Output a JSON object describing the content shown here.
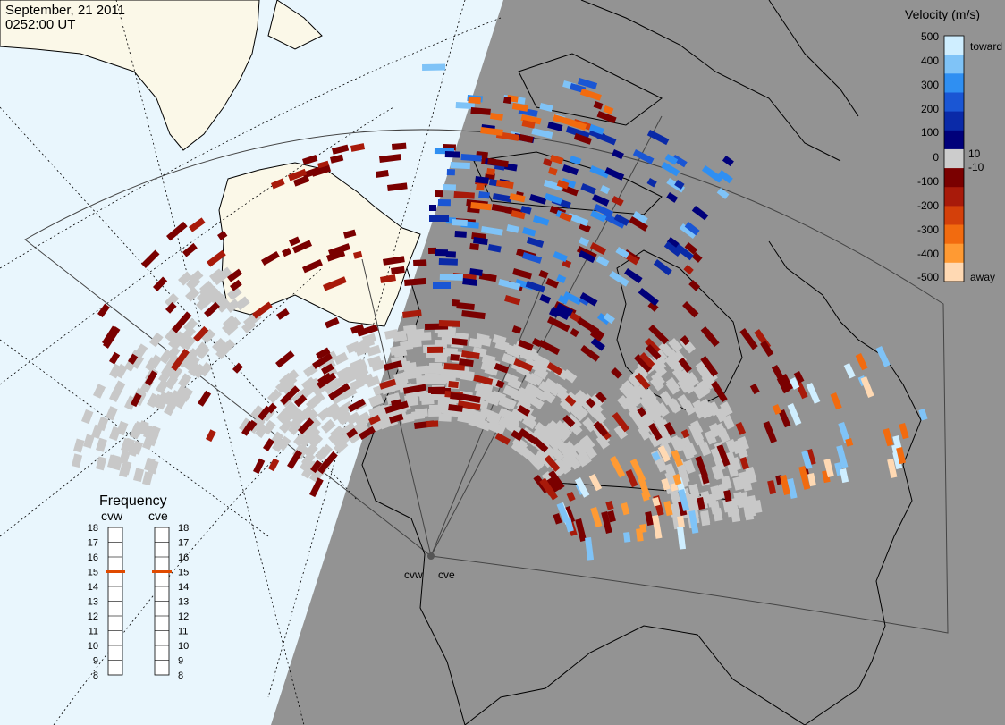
{
  "header": {
    "date": "September, 21 2011",
    "time": "0252:00 UT"
  },
  "colorbar": {
    "title": "Velocity (m/s)",
    "ticks": [
      "500",
      "400",
      "300",
      "200",
      "100",
      "10",
      "0",
      "-10",
      "-100",
      "-200",
      "-300",
      "-400",
      "-500"
    ],
    "toward_label": "toward",
    "away_label": "away",
    "colors": [
      "#ffd9b3",
      "#ff9a33",
      "#f26b0f",
      "#d4400a",
      "#a81a0a",
      "#7a0000",
      "#cccccc",
      "#00007a",
      "#0a2aa8",
      "#1a56d4",
      "#2f8ff2",
      "#7fc3f7",
      "#cfeeff"
    ]
  },
  "frequency": {
    "title": "Frequency",
    "left_radar": "cvw",
    "right_radar": "cve",
    "scale": [
      "18",
      "17",
      "16",
      "15",
      "14",
      "13",
      "12",
      "11",
      "10",
      "9",
      "8"
    ],
    "cvw_value_mhz": 15,
    "cve_value_mhz": 15,
    "marker_color": "#e04a00"
  },
  "radars": {
    "site_labels": [
      "cvw",
      "cve"
    ]
  },
  "map": {
    "night_color": "#939393",
    "day_ocean_color": "#e9f6fd",
    "day_land_color": "#fbf8e8",
    "scatter_color": "#c8c8c8"
  }
}
